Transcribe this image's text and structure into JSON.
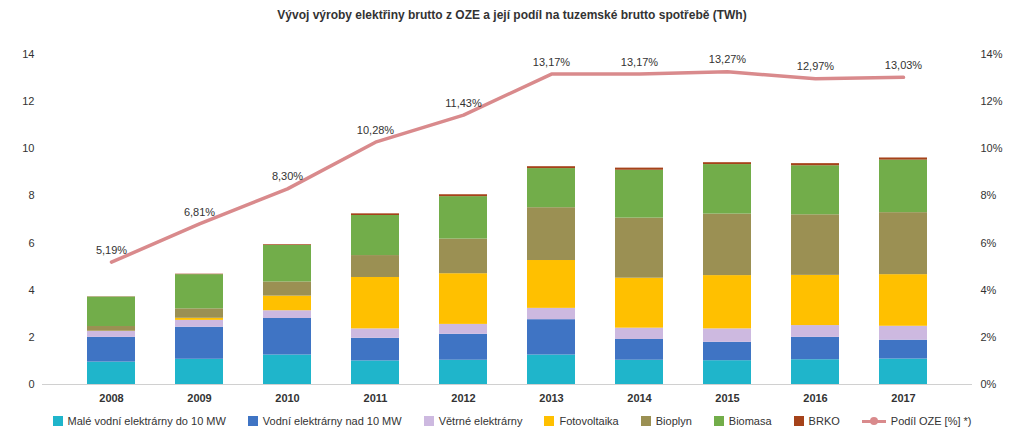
{
  "chart_data": {
    "type": "bar",
    "title": "Vývoj výroby elektřiny brutto z OZE a její podíl na tuzemské brutto spotřebě (TWh)",
    "categories": [
      "2008",
      "2009",
      "2010",
      "2011",
      "2012",
      "2013",
      "2014",
      "2015",
      "2016",
      "2017"
    ],
    "stacked": true,
    "grid": false,
    "legend": "bottom",
    "data_labels": true,
    "ylim": [
      0,
      14
    ],
    "yticks": [
      0,
      2,
      4,
      6,
      8,
      10,
      12,
      14
    ],
    "y2lim": [
      0,
      14
    ],
    "y2ticks": [
      {
        "value": 0,
        "label": "0%"
      },
      {
        "value": 2,
        "label": "2%"
      },
      {
        "value": 4,
        "label": "4%"
      },
      {
        "value": 6,
        "label": "6%"
      },
      {
        "value": 8,
        "label": "8%"
      },
      {
        "value": 10,
        "label": "10%"
      },
      {
        "value": 12,
        "label": "12%"
      },
      {
        "value": 14,
        "label": "14%"
      }
    ],
    "series": [
      {
        "name": "Malé vodní elektrárny do 10 MW",
        "color": "#1fb5cb",
        "values": [
          0.95,
          1.07,
          1.25,
          1.0,
          1.03,
          1.25,
          1.03,
          1.01,
          1.05,
          1.08
        ]
      },
      {
        "name": "Vodní elektrárny nad 10 MW",
        "color": "#3f74c4",
        "values": [
          1.05,
          1.36,
          1.55,
          0.96,
          1.1,
          1.5,
          0.88,
          0.78,
          0.95,
          0.8
        ]
      },
      {
        "name": "Větrné elektrárny",
        "color": "#cdb9e0",
        "values": [
          0.25,
          0.29,
          0.33,
          0.4,
          0.42,
          0.48,
          0.48,
          0.57,
          0.5,
          0.59
        ]
      },
      {
        "name": "Fotovoltaika",
        "color": "#ffc000",
        "values": [
          0.01,
          0.09,
          0.62,
          2.18,
          2.15,
          2.03,
          2.12,
          2.26,
          2.13,
          2.19
        ]
      },
      {
        "name": "Bioplyn",
        "color": "#9b9053",
        "values": [
          0.2,
          0.4,
          0.6,
          0.93,
          1.47,
          2.24,
          2.55,
          2.61,
          2.57,
          2.63
        ]
      },
      {
        "name": "Biomasa",
        "color": "#72ad4a",
        "values": [
          1.25,
          1.45,
          1.55,
          1.7,
          1.8,
          1.66,
          2.03,
          2.1,
          2.08,
          2.23
        ]
      },
      {
        "name": "BRKO",
        "color": "#a5421a",
        "values": [
          0.01,
          0.02,
          0.03,
          0.07,
          0.08,
          0.08,
          0.09,
          0.08,
          0.09,
          0.09
        ]
      },
      {
        "name": "Podíl OZE [%] *)",
        "color": "#d98a8c",
        "type": "line",
        "axis": "y2",
        "values": [
          5.19,
          6.81,
          8.3,
          10.28,
          11.43,
          13.17,
          13.17,
          13.27,
          12.97,
          13.03
        ],
        "value_labels": [
          "5,19%",
          "6,81%",
          "8,30%",
          "10,28%",
          "11,43%",
          "13,17%",
          "13,17%",
          "13,27%",
          "12,97%",
          "13,03%"
        ]
      }
    ]
  }
}
